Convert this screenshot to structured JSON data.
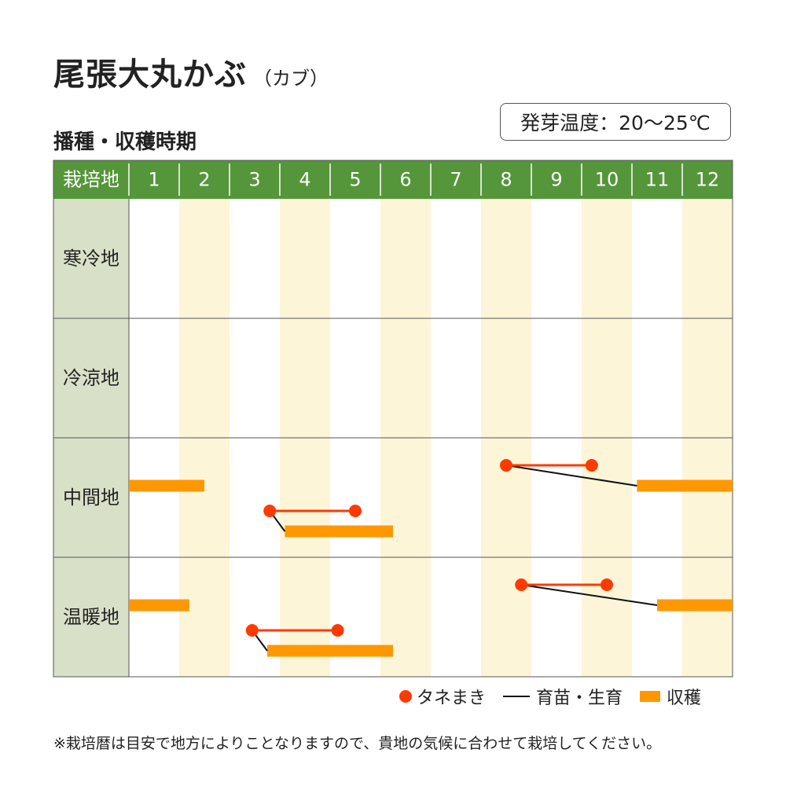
{
  "header": {
    "title": "尾張大丸かぶ",
    "subtitle": "（カブ）",
    "section_label": "播種・収穫時期",
    "germination_temp": "発芽温度：20～25℃"
  },
  "colors": {
    "header_green": "#55963a",
    "region_cell": "#d9e0c8",
    "stripe": "#fdf5d8",
    "sowing": "#ff3a00",
    "growing": "#111111",
    "harvest": "#ff9800"
  },
  "chart_data": {
    "type": "gantt",
    "corner_label": "栽培地",
    "months": [
      "1",
      "2",
      "3",
      "4",
      "5",
      "6",
      "7",
      "8",
      "9",
      "10",
      "11",
      "12"
    ],
    "regions": [
      {
        "name": "寒冷地",
        "schedules": []
      },
      {
        "name": "冷涼地",
        "schedules": []
      },
      {
        "name": "中間地",
        "schedules": [
          {
            "harvest": [
              1.0,
              2.5
            ]
          },
          {
            "sowing": [
              3.8,
              5.5
            ],
            "growing": [
              4.1
            ],
            "harvest": [
              4.1,
              6.25
            ]
          },
          {
            "sowing": [
              8.5,
              10.2
            ],
            "growing": [
              11.1
            ],
            "harvest": [
              11.1,
              13.0
            ]
          }
        ]
      },
      {
        "name": "温暖地",
        "schedules": [
          {
            "harvest": [
              1.0,
              2.2
            ]
          },
          {
            "sowing": [
              3.45,
              5.15
            ],
            "growing": [
              3.75
            ],
            "harvest": [
              3.75,
              6.25
            ]
          },
          {
            "sowing": [
              8.8,
              10.5
            ],
            "growing": [
              11.5
            ],
            "harvest": [
              11.5,
              13.0
            ]
          }
        ]
      }
    ]
  },
  "legend": {
    "sowing": "タネまき",
    "growing": "育苗・生育",
    "harvest": "収穫"
  },
  "footnote": "※栽培暦は目安で地方によりことなりますので、貴地の気候に合わせて栽培してください。"
}
